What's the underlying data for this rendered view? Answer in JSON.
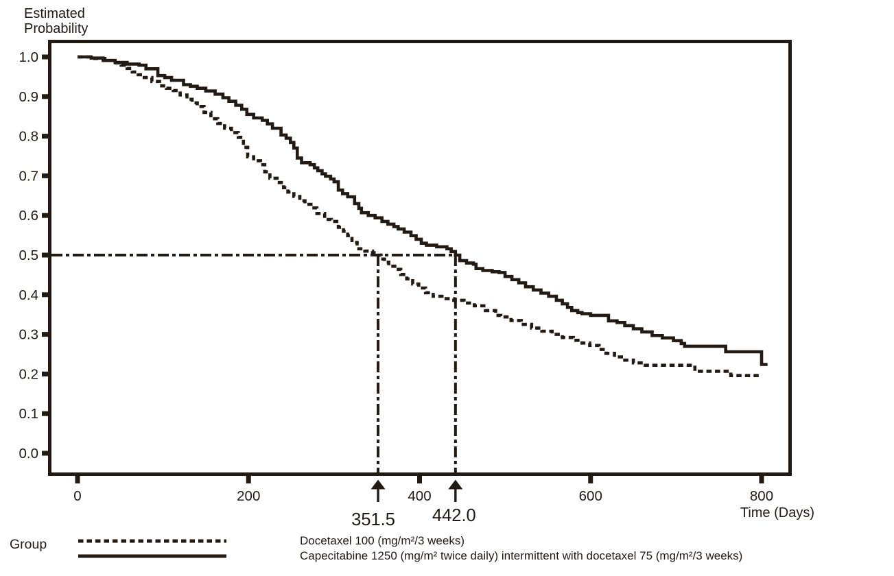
{
  "figure": {
    "background": "#ffffff",
    "ink_color": "#221a13",
    "y_axis_title_lines": [
      "Estimated",
      "Probability"
    ],
    "x_axis_title": "Time (Days)",
    "legend_group_label": "Group"
  },
  "chart_data": {
    "type": "line",
    "subtype": "kaplan-meier-step",
    "title": "",
    "xlabel": "Time (Days)",
    "ylabel": "Estimated Probability",
    "xlim": [
      -27,
      834
    ],
    "ylim": [
      -0.055,
      1.045
    ],
    "x_ticks": [
      0,
      200,
      400,
      600,
      800
    ],
    "y_ticks": [
      1.0,
      0.9,
      0.8,
      0.7,
      0.6,
      0.5,
      0.4,
      0.3,
      0.2,
      0.1,
      0.0
    ],
    "grid": false,
    "legend_position": "bottom",
    "reference_probability": 0.5,
    "medians": [
      {
        "time": 351.5,
        "label": "351.5",
        "series": "Docetaxel 100 (mg/m²/3 weeks)"
      },
      {
        "time": 442.0,
        "label": "442.0",
        "series": "Capecitabine 1250 (mg/m² twice daily) intermittent with docetaxel 75 (mg/m²/3 weeks)"
      }
    ],
    "series": [
      {
        "name": "Docetaxel 100 (mg/m²/3 weeks)",
        "line_style": "dashed",
        "median_days": 351.5,
        "points": [
          [
            0,
            1.0
          ],
          [
            18,
            0.996
          ],
          [
            32,
            0.991
          ],
          [
            45,
            0.985
          ],
          [
            51,
            0.979
          ],
          [
            58,
            0.971
          ],
          [
            64,
            0.962
          ],
          [
            71,
            0.955
          ],
          [
            78,
            0.948
          ],
          [
            87,
            0.938
          ],
          [
            96,
            0.927
          ],
          [
            104,
            0.921
          ],
          [
            112,
            0.915
          ],
          [
            120,
            0.904
          ],
          [
            128,
            0.893
          ],
          [
            134,
            0.884
          ],
          [
            140,
            0.875
          ],
          [
            148,
            0.86
          ],
          [
            156,
            0.844
          ],
          [
            164,
            0.832
          ],
          [
            172,
            0.82
          ],
          [
            180,
            0.809
          ],
          [
            188,
            0.797
          ],
          [
            194,
            0.772
          ],
          [
            199,
            0.748
          ],
          [
            206,
            0.738
          ],
          [
            214,
            0.728
          ],
          [
            219,
            0.71
          ],
          [
            225,
            0.694
          ],
          [
            236,
            0.683
          ],
          [
            241,
            0.67
          ],
          [
            246,
            0.659
          ],
          [
            253,
            0.648
          ],
          [
            260,
            0.637
          ],
          [
            266,
            0.628
          ],
          [
            273,
            0.619
          ],
          [
            280,
            0.605
          ],
          [
            289,
            0.59
          ],
          [
            297,
            0.585
          ],
          [
            305,
            0.57
          ],
          [
            311,
            0.56
          ],
          [
            316,
            0.549
          ],
          [
            321,
            0.532
          ],
          [
            327,
            0.516
          ],
          [
            336,
            0.51
          ],
          [
            345,
            0.506
          ],
          [
            351.5,
            0.5
          ],
          [
            355,
            0.49
          ],
          [
            359,
            0.482
          ],
          [
            364,
            0.472
          ],
          [
            371,
            0.464
          ],
          [
            378,
            0.451
          ],
          [
            385,
            0.44
          ],
          [
            392,
            0.427
          ],
          [
            399,
            0.417
          ],
          [
            407,
            0.405
          ],
          [
            416,
            0.396
          ],
          [
            428,
            0.39
          ],
          [
            440,
            0.386
          ],
          [
            452,
            0.379
          ],
          [
            464,
            0.372
          ],
          [
            477,
            0.36
          ],
          [
            489,
            0.348
          ],
          [
            495,
            0.344
          ],
          [
            507,
            0.335
          ],
          [
            519,
            0.325
          ],
          [
            531,
            0.316
          ],
          [
            543,
            0.308
          ],
          [
            555,
            0.3
          ],
          [
            567,
            0.292
          ],
          [
            580,
            0.285
          ],
          [
            590,
            0.278
          ],
          [
            599,
            0.272
          ],
          [
            610,
            0.262
          ],
          [
            618,
            0.252
          ],
          [
            628,
            0.243
          ],
          [
            638,
            0.235
          ],
          [
            650,
            0.228
          ],
          [
            664,
            0.222
          ],
          [
            722,
            0.207
          ],
          [
            764,
            0.196
          ],
          [
            798,
            0.196
          ]
        ]
      },
      {
        "name": "Capecitabine 1250 (mg/m² twice daily) intermittent with docetaxel 75 (mg/m²/3 weeks)",
        "line_style": "solid",
        "median_days": 442.0,
        "points": [
          [
            0,
            1.0
          ],
          [
            16,
            0.997
          ],
          [
            30,
            0.991
          ],
          [
            44,
            0.986
          ],
          [
            58,
            0.982
          ],
          [
            72,
            0.979
          ],
          [
            80,
            0.97
          ],
          [
            94,
            0.953
          ],
          [
            102,
            0.948
          ],
          [
            110,
            0.941
          ],
          [
            124,
            0.93
          ],
          [
            132,
            0.926
          ],
          [
            140,
            0.921
          ],
          [
            150,
            0.914
          ],
          [
            161,
            0.906
          ],
          [
            170,
            0.897
          ],
          [
            177,
            0.888
          ],
          [
            185,
            0.878
          ],
          [
            192,
            0.868
          ],
          [
            198,
            0.855
          ],
          [
            206,
            0.846
          ],
          [
            216,
            0.84
          ],
          [
            222,
            0.831
          ],
          [
            228,
            0.82
          ],
          [
            238,
            0.803
          ],
          [
            244,
            0.795
          ],
          [
            249,
            0.784
          ],
          [
            253,
            0.77
          ],
          [
            257,
            0.745
          ],
          [
            262,
            0.733
          ],
          [
            272,
            0.728
          ],
          [
            277,
            0.72
          ],
          [
            281,
            0.713
          ],
          [
            286,
            0.705
          ],
          [
            290,
            0.699
          ],
          [
            296,
            0.692
          ],
          [
            300,
            0.685
          ],
          [
            305,
            0.664
          ],
          [
            310,
            0.655
          ],
          [
            316,
            0.647
          ],
          [
            324,
            0.63
          ],
          [
            329,
            0.618
          ],
          [
            332,
            0.607
          ],
          [
            340,
            0.6
          ],
          [
            348,
            0.594
          ],
          [
            356,
            0.585
          ],
          [
            363,
            0.578
          ],
          [
            370,
            0.572
          ],
          [
            375,
            0.566
          ],
          [
            382,
            0.558
          ],
          [
            390,
            0.549
          ],
          [
            396,
            0.54
          ],
          [
            402,
            0.53
          ],
          [
            408,
            0.525
          ],
          [
            420,
            0.521
          ],
          [
            432,
            0.516
          ],
          [
            437,
            0.509
          ],
          [
            442,
            0.5
          ],
          [
            447,
            0.486
          ],
          [
            455,
            0.48
          ],
          [
            463,
            0.477
          ],
          [
            466,
            0.466
          ],
          [
            474,
            0.461
          ],
          [
            485,
            0.458
          ],
          [
            493,
            0.456
          ],
          [
            500,
            0.446
          ],
          [
            508,
            0.438
          ],
          [
            516,
            0.43
          ],
          [
            524,
            0.42
          ],
          [
            533,
            0.412
          ],
          [
            542,
            0.404
          ],
          [
            551,
            0.396
          ],
          [
            560,
            0.386
          ],
          [
            567,
            0.377
          ],
          [
            573,
            0.368
          ],
          [
            578,
            0.36
          ],
          [
            585,
            0.355
          ],
          [
            590,
            0.352
          ],
          [
            600,
            0.348
          ],
          [
            621,
            0.334
          ],
          [
            631,
            0.33
          ],
          [
            640,
            0.322
          ],
          [
            650,
            0.314
          ],
          [
            660,
            0.306
          ],
          [
            672,
            0.297
          ],
          [
            684,
            0.291
          ],
          [
            697,
            0.284
          ],
          [
            706,
            0.277
          ],
          [
            710,
            0.27
          ],
          [
            758,
            0.256
          ],
          [
            800,
            0.224
          ],
          [
            807,
            0.224
          ]
        ]
      }
    ]
  }
}
